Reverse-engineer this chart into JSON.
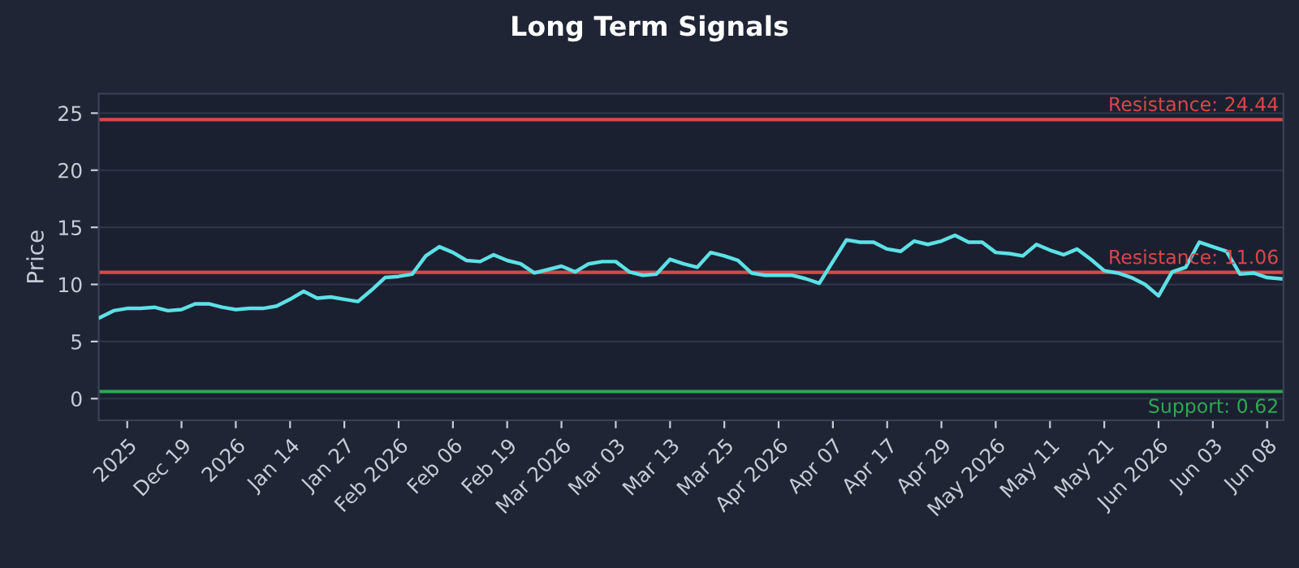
{
  "chart_data": {
    "type": "line",
    "title": "Long Term Signals",
    "ylabel": "Price",
    "categories": [
      null,
      null,
      "2025",
      null,
      null,
      null,
      "Dec 19",
      null,
      null,
      null,
      "2026",
      null,
      null,
      null,
      "Jan 14",
      null,
      null,
      null,
      "Jan 27",
      null,
      null,
      null,
      "Feb 2026",
      null,
      null,
      null,
      "Feb 06",
      null,
      null,
      null,
      "Feb 19",
      null,
      null,
      null,
      "Mar 2026",
      null,
      null,
      null,
      "Mar 03",
      null,
      null,
      null,
      "Mar 13",
      null,
      null,
      null,
      "Mar 25",
      null,
      null,
      null,
      "Apr 2026",
      null,
      null,
      null,
      "Apr 07",
      null,
      null,
      null,
      "Apr 17",
      null,
      null,
      null,
      "Apr 29",
      null,
      null,
      null,
      "May 2026",
      null,
      null,
      null,
      "May 11",
      null,
      null,
      null,
      "May 21",
      null,
      null,
      null,
      "Jun 2026",
      null,
      null,
      null,
      "Jun 03",
      null,
      null,
      null,
      "Jun 08",
      null
    ],
    "series": [
      {
        "color": "#5ce1e6",
        "values": [
          7.1,
          7.7,
          7.9,
          7.9,
          8.0,
          7.7,
          7.8,
          8.3,
          8.3,
          8.0,
          7.8,
          7.9,
          7.9,
          8.1,
          8.7,
          9.4,
          8.8,
          8.9,
          8.7,
          8.5,
          9.5,
          10.6,
          10.7,
          10.9,
          12.5,
          13.3,
          12.8,
          12.1,
          12.0,
          12.6,
          12.1,
          11.8,
          11.0,
          11.3,
          11.6,
          11.1,
          11.8,
          12.0,
          12.0,
          11.1,
          10.8,
          10.9,
          12.2,
          11.8,
          11.5,
          12.8,
          12.5,
          12.1,
          11.0,
          10.8,
          10.8,
          10.8,
          10.5,
          10.1,
          12.0,
          13.9,
          13.7,
          13.7,
          13.1,
          12.9,
          13.8,
          13.5,
          13.8,
          14.3,
          13.7,
          13.7,
          12.8,
          12.7,
          12.5,
          13.5,
          13.0,
          12.6,
          13.1,
          12.2,
          11.2,
          11.0,
          10.6,
          10.0,
          9.0,
          11.1,
          11.5,
          13.7,
          13.3,
          12.9,
          10.9,
          11.0,
          10.6,
          10.5
        ]
      }
    ],
    "ylim": [
      -1.9,
      26.7
    ],
    "yticks": [
      0,
      5,
      10,
      15,
      20,
      25
    ],
    "grid": "y",
    "line_style": "solid",
    "ref_lines": [
      {
        "axis": "y",
        "value": 24.44,
        "label": "Resistance: 24.44",
        "color": "#d9474a"
      },
      {
        "axis": "y",
        "value": 11.06,
        "label": "Resistance: 11.06",
        "color": "#d9474a"
      },
      {
        "axis": "y",
        "value": 0.62,
        "label": "Support: 0.62",
        "color": "#2ea852"
      }
    ]
  }
}
